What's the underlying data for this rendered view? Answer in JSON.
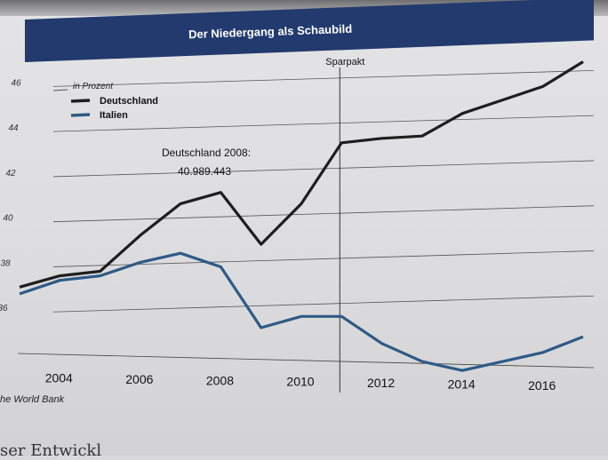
{
  "header": {
    "title": "Der Niedergang als Schaubild",
    "banner_color": "#223a6e"
  },
  "chart_data": {
    "type": "line",
    "unit_label": "in Prozent",
    "x": [
      2003,
      2004,
      2005,
      2006,
      2007,
      2008,
      2009,
      2010,
      2011,
      2012,
      2013,
      2014,
      2015,
      2016,
      2017
    ],
    "series": [
      {
        "name": "Deutschland",
        "color": "#1e1e1e",
        "values": [
          37.1,
          37.6,
          37.8,
          39.4,
          40.8,
          41.3,
          39.0,
          40.8,
          43.5,
          43.7,
          43.8,
          44.8,
          45.4,
          46.0,
          47.1
        ]
      },
      {
        "name": "Italien",
        "color": "#2e5a86",
        "values": [
          36.8,
          37.4,
          37.6,
          38.2,
          38.6,
          38.0,
          35.3,
          35.8,
          35.8,
          34.6,
          33.8,
          33.4,
          33.8,
          34.2,
          34.9
        ]
      }
    ],
    "y_ticks": [
      "46",
      "44",
      "42",
      "40",
      "38",
      "36"
    ],
    "x_ticks": [
      "2004",
      "2006",
      "2008",
      "2010",
      "2012",
      "2014",
      "2016"
    ],
    "ylim": [
      34,
      47
    ],
    "grid": true,
    "legend_position": "top-left",
    "annotations": {
      "event_label": "Sparpakt",
      "event_year": 2011,
      "point_title": "Deutschland 2008:",
      "point_value": "40.989.443"
    }
  },
  "footer": {
    "source": "he World Bank",
    "body_fragment": "ser Entwickl"
  }
}
